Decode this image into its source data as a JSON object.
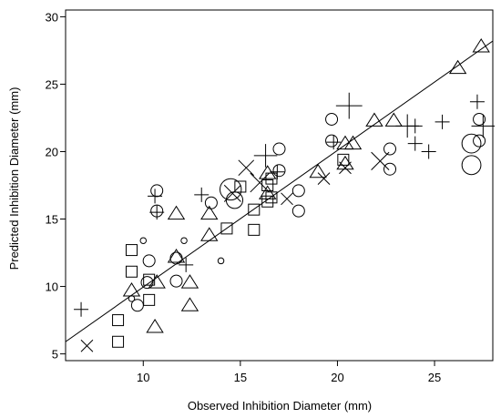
{
  "chart_data": {
    "type": "scatter",
    "xlabel": "Observed Inhibition Diameter (mm)",
    "ylabel": "Predicted Inhibition Diameter (mm)",
    "xlim": [
      6,
      28
    ],
    "ylim": [
      4.5,
      30.5
    ],
    "xticks": [
      "10",
      "15",
      "20",
      "25"
    ],
    "yticks": [
      "5",
      "10",
      "15",
      "20",
      "25",
      "30"
    ],
    "grid": false,
    "legend": "none",
    "marker_color": "#000000",
    "fit_line": {
      "x": [
        6,
        28
      ],
      "y": [
        5.9,
        28.2
      ]
    },
    "series": [
      {
        "marker": "circle",
        "points": [
          {
            "x": 10.7,
            "y": 17.1,
            "s": 1.0
          },
          {
            "x": 10.7,
            "y": 15.6,
            "s": 1.0
          },
          {
            "x": 10.3,
            "y": 11.9,
            "s": 1.0
          },
          {
            "x": 10.2,
            "y": 10.3,
            "s": 1.0
          },
          {
            "x": 9.7,
            "y": 8.6,
            "s": 1.0
          },
          {
            "x": 11.7,
            "y": 12.1,
            "s": 1.0
          },
          {
            "x": 11.7,
            "y": 10.4,
            "s": 1.0
          },
          {
            "x": 13.5,
            "y": 16.2,
            "s": 1.0
          },
          {
            "x": 14.5,
            "y": 17.2,
            "s": 1.8
          },
          {
            "x": 14.7,
            "y": 16.4,
            "s": 1.4
          },
          {
            "x": 17.0,
            "y": 20.2,
            "s": 1.0
          },
          {
            "x": 17.0,
            "y": 18.6,
            "s": 1.0
          },
          {
            "x": 18.0,
            "y": 17.1,
            "s": 1.0
          },
          {
            "x": 18.0,
            "y": 15.6,
            "s": 1.0
          },
          {
            "x": 19.7,
            "y": 22.4,
            "s": 1.0
          },
          {
            "x": 19.7,
            "y": 20.8,
            "s": 1.0
          },
          {
            "x": 22.7,
            "y": 20.2,
            "s": 1.0
          },
          {
            "x": 22.7,
            "y": 18.7,
            "s": 1.0
          },
          {
            "x": 26.9,
            "y": 20.6,
            "s": 1.6
          },
          {
            "x": 26.9,
            "y": 19.0,
            "s": 1.6
          },
          {
            "x": 27.3,
            "y": 22.4,
            "s": 1.0
          },
          {
            "x": 27.3,
            "y": 20.8,
            "s": 1.0
          },
          {
            "x": 10.0,
            "y": 13.4,
            "s": 0.5
          },
          {
            "x": 9.4,
            "y": 9.1,
            "s": 0.5
          },
          {
            "x": 12.1,
            "y": 13.4,
            "s": 0.5
          },
          {
            "x": 14.0,
            "y": 11.9,
            "s": 0.5
          }
        ]
      },
      {
        "marker": "square",
        "points": [
          {
            "x": 9.4,
            "y": 12.7
          },
          {
            "x": 9.4,
            "y": 11.1
          },
          {
            "x": 10.3,
            "y": 10.5
          },
          {
            "x": 10.3,
            "y": 9.0
          },
          {
            "x": 8.7,
            "y": 7.5
          },
          {
            "x": 8.7,
            "y": 5.9
          },
          {
            "x": 14.3,
            "y": 14.3
          },
          {
            "x": 15.0,
            "y": 17.4
          },
          {
            "x": 15.7,
            "y": 15.7
          },
          {
            "x": 15.7,
            "y": 14.2
          },
          {
            "x": 16.4,
            "y": 17.5
          },
          {
            "x": 16.4,
            "y": 16.3
          },
          {
            "x": 16.6,
            "y": 18.0
          },
          {
            "x": 16.6,
            "y": 16.6
          },
          {
            "x": 20.3,
            "y": 19.4
          }
        ]
      },
      {
        "marker": "triangle",
        "points": [
          {
            "x": 9.4,
            "y": 9.7
          },
          {
            "x": 10.7,
            "y": 10.3
          },
          {
            "x": 10.6,
            "y": 7.0
          },
          {
            "x": 11.7,
            "y": 15.4
          },
          {
            "x": 11.7,
            "y": 12.2
          },
          {
            "x": 12.4,
            "y": 10.3
          },
          {
            "x": 12.4,
            "y": 8.6
          },
          {
            "x": 13.4,
            "y": 15.4
          },
          {
            "x": 13.4,
            "y": 13.8
          },
          {
            "x": 16.4,
            "y": 18.4
          },
          {
            "x": 16.4,
            "y": 16.9
          },
          {
            "x": 19.0,
            "y": 18.5
          },
          {
            "x": 20.4,
            "y": 20.6
          },
          {
            "x": 20.4,
            "y": 19.1
          },
          {
            "x": 20.8,
            "y": 20.6
          },
          {
            "x": 21.9,
            "y": 22.3
          },
          {
            "x": 22.9,
            "y": 22.3
          },
          {
            "x": 26.2,
            "y": 26.2
          },
          {
            "x": 27.4,
            "y": 27.8
          }
        ]
      },
      {
        "marker": "plus",
        "points": [
          {
            "x": 6.8,
            "y": 8.3,
            "s": 1.0
          },
          {
            "x": 10.6,
            "y": 16.7,
            "s": 1.0
          },
          {
            "x": 10.7,
            "y": 15.5,
            "s": 1.0
          },
          {
            "x": 12.2,
            "y": 11.6,
            "s": 1.0
          },
          {
            "x": 13.0,
            "y": 16.8,
            "s": 1.0
          },
          {
            "x": 16.3,
            "y": 19.7,
            "s": 1.6
          },
          {
            "x": 16.9,
            "y": 18.5,
            "s": 1.0
          },
          {
            "x": 19.8,
            "y": 20.7,
            "s": 1.0
          },
          {
            "x": 20.6,
            "y": 23.4,
            "s": 1.8
          },
          {
            "x": 23.6,
            "y": 21.9,
            "s": 1.6
          },
          {
            "x": 24.0,
            "y": 21.9,
            "s": 1.0
          },
          {
            "x": 24.0,
            "y": 20.6,
            "s": 1.0
          },
          {
            "x": 24.7,
            "y": 20.0,
            "s": 1.0
          },
          {
            "x": 25.4,
            "y": 22.2,
            "s": 1.0
          },
          {
            "x": 27.2,
            "y": 23.7,
            "s": 1.0
          },
          {
            "x": 27.5,
            "y": 21.9,
            "s": 1.6
          }
        ]
      },
      {
        "marker": "cross",
        "points": [
          {
            "x": 7.1,
            "y": 5.6,
            "s": 1.0
          },
          {
            "x": 14.6,
            "y": 16.9,
            "s": 1.4
          },
          {
            "x": 15.3,
            "y": 18.8,
            "s": 1.3
          },
          {
            "x": 16.0,
            "y": 17.7,
            "s": 1.6
          },
          {
            "x": 17.4,
            "y": 16.5,
            "s": 1.0
          },
          {
            "x": 19.3,
            "y": 18.0,
            "s": 1.0
          },
          {
            "x": 20.4,
            "y": 18.8,
            "s": 1.0
          },
          {
            "x": 22.2,
            "y": 19.3,
            "s": 1.5
          }
        ]
      }
    ]
  }
}
